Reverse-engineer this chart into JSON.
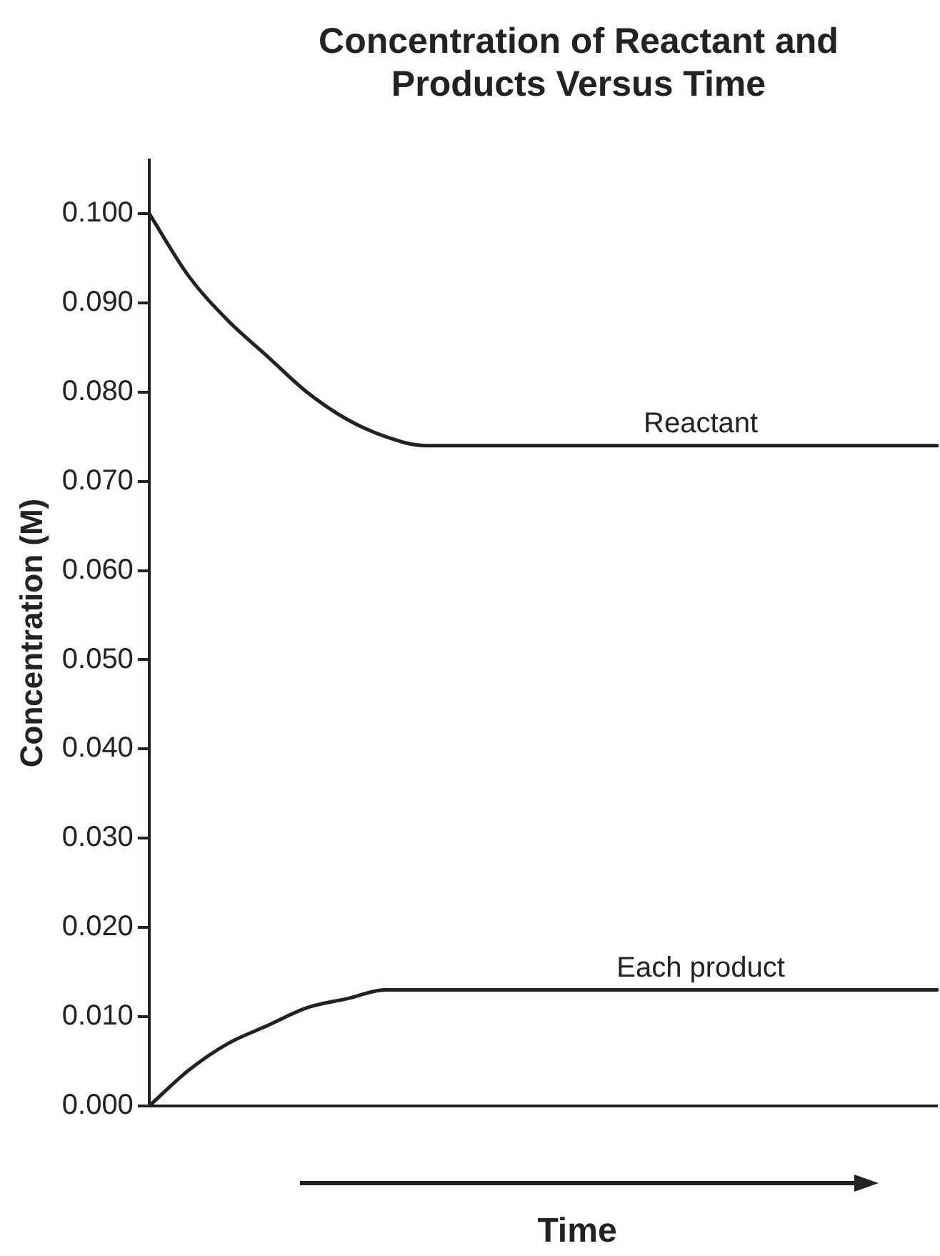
{
  "chart_data": {
    "type": "line",
    "title": "Concentration of Reactant and Products Versus Time",
    "xlabel": "Time",
    "ylabel": "Concentration (M)",
    "categories": [
      null,
      null,
      null,
      null,
      null,
      null,
      null,
      null,
      null,
      null,
      null,
      null,
      null,
      null,
      null,
      null,
      null,
      null,
      null,
      null,
      null
    ],
    "series": [
      {
        "name": "Reactant",
        "color": "#222222",
        "values": [
          0.1,
          0.093,
          0.088,
          0.084,
          0.08,
          0.077,
          0.075,
          0.074,
          0.074,
          0.074,
          0.074,
          0.074,
          0.074,
          0.074,
          0.074,
          0.074,
          0.074,
          0.074,
          0.074,
          0.074,
          0.074
        ]
      },
      {
        "name": "Each product",
        "color": "#222222",
        "values": [
          0.0,
          0.004,
          0.007,
          0.009,
          0.011,
          0.012,
          0.013,
          0.013,
          0.013,
          0.013,
          0.013,
          0.013,
          0.013,
          0.013,
          0.013,
          0.013,
          0.013,
          0.013,
          0.013,
          0.013,
          0.013
        ]
      }
    ],
    "ylim": [
      0,
      0.106
    ],
    "yticks": [
      {
        "value": 0,
        "label": "0.000"
      },
      {
        "value": 0.01,
        "label": "0.010"
      },
      {
        "value": 0.02,
        "label": "0.020"
      },
      {
        "value": 0.03,
        "label": "0.030"
      },
      {
        "value": 0.04,
        "label": "0.040"
      },
      {
        "value": 0.05,
        "label": "0.050"
      },
      {
        "value": 0.06,
        "label": "0.060"
      },
      {
        "value": 0.07,
        "label": "0.070"
      },
      {
        "value": 0.08,
        "label": "0.080"
      },
      {
        "value": 0.09,
        "label": "0.090"
      },
      {
        "value": 0.1,
        "label": "0.100"
      }
    ],
    "tick_labels": "y",
    "grid": false,
    "legend": false,
    "marker": "none",
    "line_style": "solid"
  }
}
